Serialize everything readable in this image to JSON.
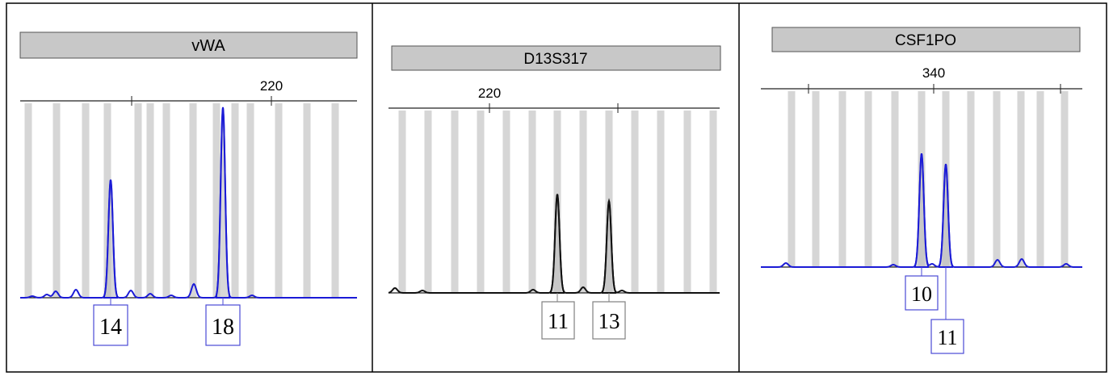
{
  "colors": {
    "blue_trace": "#1b1bd6",
    "black_trace": "#111111",
    "bin": "#d6d6d6",
    "header": "#c8c8c8",
    "label_border_blue": "#4a4ad6",
    "label_border_gray": "#808080",
    "frame": "#000000"
  },
  "chart_data": [
    {
      "type": "line",
      "title": "vWA",
      "trace_color": "blue",
      "axis_tick_labels": [
        "220"
      ],
      "alleles": [
        {
          "label": "14",
          "peak_height": 0.62
        },
        {
          "label": "18",
          "peak_height": 1.0
        }
      ]
    },
    {
      "type": "line",
      "title": "D13S317",
      "trace_color": "black",
      "axis_tick_labels": [
        "220"
      ],
      "alleles": [
        {
          "label": "11",
          "peak_height": 0.58
        },
        {
          "label": "13",
          "peak_height": 0.54
        }
      ]
    },
    {
      "type": "line",
      "title": "CSF1PO",
      "trace_color": "blue",
      "axis_tick_labels": [
        "340"
      ],
      "alleles": [
        {
          "label": "10",
          "peak_height": 0.64
        },
        {
          "label": "11",
          "peak_height": 0.58
        }
      ]
    }
  ]
}
